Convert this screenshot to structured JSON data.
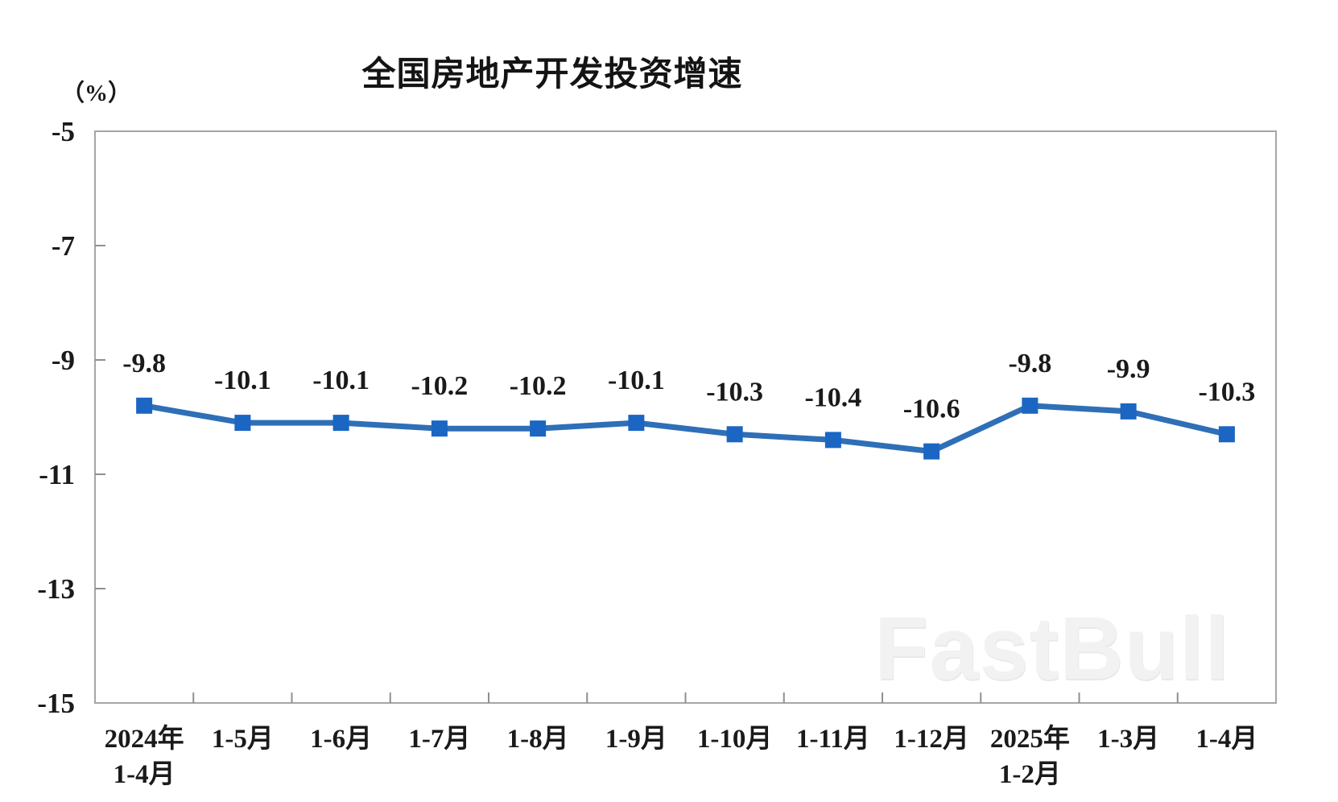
{
  "chart": {
    "watermark": "FastBull"
  },
  "chart_data": {
    "type": "line",
    "title": "全国房地产开发投资增速",
    "ylabel": "（%）",
    "xlabel": "",
    "categories": [
      "2024年\n1-4月",
      "1-5月",
      "1-6月",
      "1-7月",
      "1-8月",
      "1-9月",
      "1-10月",
      "1-11月",
      "1-12月",
      "2025年\n1-2月",
      "1-3月",
      "1-4月"
    ],
    "values": [
      -9.8,
      -10.1,
      -10.1,
      -10.2,
      -10.2,
      -10.1,
      -10.3,
      -10.4,
      -10.6,
      -9.8,
      -9.9,
      -10.3
    ],
    "series_name": "全国房地产开发投资增速",
    "ylim": [
      -15,
      -5
    ],
    "yticks": [
      -5,
      -7,
      -9,
      -11,
      -13,
      -15
    ],
    "grid": false,
    "legend": "none",
    "data_labels_visible": true,
    "marker_shape": "square",
    "colors": {
      "line": "#2e6fb7",
      "marker": "#1a66c2",
      "axis": "#a6a6a6",
      "tick": "#8f8f8f",
      "text": "#1a1a1a",
      "watermark": "#f2f2f2"
    }
  }
}
